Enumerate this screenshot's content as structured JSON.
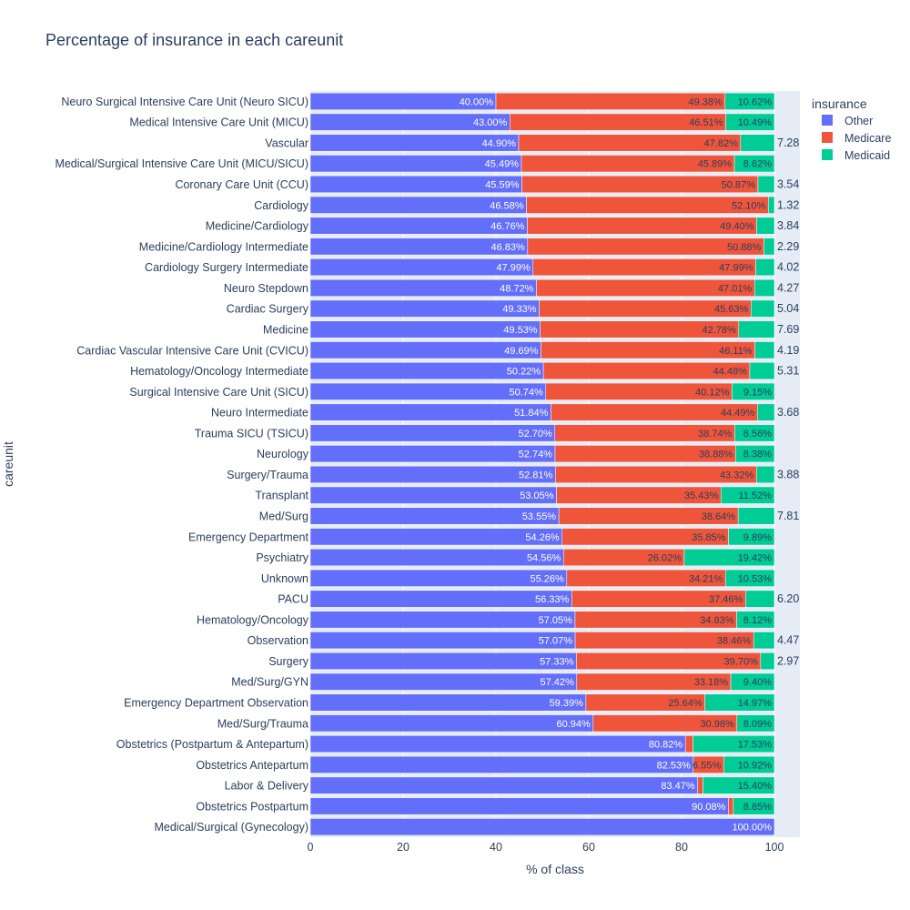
{
  "colors": {
    "Other": "#636efa",
    "Medicare": "#ef553b",
    "Medicaid": "#00cc96",
    "plot_bg": "#e5ecf6"
  },
  "chart_data": {
    "type": "bar",
    "orientation": "horizontal",
    "stacked": true,
    "title": "Percentage of insurance in each careunit",
    "xlabel": "% of class",
    "ylabel": "careunit",
    "xlim": [
      0,
      100
    ],
    "x_ticks": [
      "0",
      "20",
      "40",
      "60",
      "80",
      "100"
    ],
    "legend_title": "insurance",
    "legend_position": "top-right",
    "categories": [
      "Neuro Surgical Intensive Care Unit (Neuro SICU)",
      "Medical Intensive Care Unit (MICU)",
      "Vascular",
      "Medical/Surgical Intensive Care Unit (MICU/SICU)",
      "Coronary Care Unit (CCU)",
      "Cardiology",
      "Medicine/Cardiology",
      "Medicine/Cardiology Intermediate",
      "Cardiology Surgery Intermediate",
      "Neuro Stepdown",
      "Cardiac Surgery",
      "Medicine",
      "Cardiac Vascular Intensive Care Unit (CVICU)",
      "Hematology/Oncology Intermediate",
      "Surgical Intensive Care Unit (SICU)",
      "Neuro Intermediate",
      "Trauma SICU (TSICU)",
      "Neurology",
      "Surgery/Trauma",
      "Transplant",
      "Med/Surg",
      "Emergency Department",
      "Psychiatry",
      "Unknown",
      "PACU",
      "Hematology/Oncology",
      "Observation",
      "Surgery",
      "Med/Surg/GYN",
      "Emergency Department Observation",
      "Med/Surg/Trauma",
      "Obstetrics (Postpartum & Antepartum)",
      "Obstetrics Antepartum",
      "Labor & Delivery",
      "Obstetrics Postpartum",
      "Medical/Surgical (Gynecology)"
    ],
    "series": [
      {
        "name": "Other",
        "values": [
          40.0,
          43.0,
          44.9,
          45.49,
          45.59,
          46.58,
          46.76,
          46.83,
          47.99,
          48.72,
          49.33,
          49.53,
          49.69,
          50.22,
          50.74,
          51.84,
          52.7,
          52.74,
          52.81,
          53.05,
          53.55,
          54.26,
          54.56,
          55.26,
          56.33,
          57.05,
          57.07,
          57.33,
          57.42,
          59.39,
          60.94,
          80.82,
          82.53,
          83.47,
          90.08,
          100.0
        ]
      },
      {
        "name": "Medicare",
        "values": [
          49.38,
          46.51,
          47.82,
          45.89,
          50.87,
          52.1,
          49.4,
          50.88,
          47.99,
          47.01,
          45.63,
          42.78,
          46.11,
          44.48,
          40.12,
          44.49,
          38.74,
          38.88,
          43.32,
          35.43,
          38.64,
          35.85,
          26.02,
          34.21,
          37.46,
          34.83,
          38.46,
          39.7,
          33.18,
          25.64,
          30.98,
          1.65,
          6.55,
          1.13,
          1.07,
          0
        ]
      },
      {
        "name": "Medicaid",
        "values": [
          10.62,
          10.49,
          7.28,
          8.62,
          3.54,
          1.32,
          3.84,
          2.29,
          4.02,
          4.27,
          5.04,
          7.69,
          4.19,
          5.31,
          9.15,
          3.68,
          8.56,
          8.38,
          3.88,
          11.52,
          7.81,
          9.89,
          19.42,
          10.53,
          6.2,
          8.12,
          4.47,
          2.97,
          9.4,
          14.97,
          8.09,
          17.53,
          10.92,
          15.4,
          8.85,
          0
        ]
      }
    ],
    "bar_labels": {
      "Other": [
        "40.00%",
        "43.00%",
        "44.90%",
        "45.49%",
        "45.59%",
        "46.58%",
        "46.76%",
        "46.83%",
        "47.99%",
        "48.72%",
        "49.33%",
        "49.53%",
        "49.69%",
        "50.22%",
        "50.74%",
        "51.84%",
        "52.70%",
        "52.74%",
        "52.81%",
        "53.05%",
        "53.55%",
        "54.26%",
        "54.56%",
        "55.26%",
        "56.33%",
        "57.05%",
        "57.07%",
        "57.33%",
        "57.42%",
        "59.39%",
        "60.94%",
        "80.82%",
        "82.53%",
        "83.47%",
        "90.08%",
        "100.00%"
      ],
      "Medicare": [
        "49.38%",
        "46.51%",
        "47.82%",
        "45.89%",
        "50.87%",
        "52.10%",
        "49.40%",
        "50.88%",
        "47.99%",
        "47.01%",
        "45.63%",
        "42.78%",
        "46.11%",
        "44.48%",
        "40.12%",
        "44.49%",
        "38.74%",
        "38.88%",
        "43.32%",
        "35.43%",
        "38.64%",
        "35.85%",
        "26.02%",
        "34.21%",
        "37.46%",
        "34.83%",
        "38.46%",
        "39.70%",
        "33.18%",
        "25.64%",
        "30.98%",
        "",
        "6.55%",
        "",
        "",
        ""
      ],
      "Medicaid": [
        "10.62%",
        "10.49%",
        "7.28",
        "8.62%",
        "3.54",
        "1.32",
        "3.84",
        "2.29",
        "4.02",
        "4.27",
        "5.04",
        "7.69",
        "4.19",
        "5.31",
        "9.15%",
        "3.68",
        "8.56%",
        "8.38%",
        "3.88",
        "11.52%",
        "7.81",
        "9.89%",
        "19.42%",
        "10.53%",
        "6.20",
        "8.12%",
        "4.47",
        "2.97",
        "9.40%",
        "14.97%",
        "8.09%",
        "17.53%",
        "10.92%",
        "15.40%",
        "8.85%",
        ""
      ]
    },
    "medicaid_label_outside": [
      false,
      false,
      true,
      false,
      true,
      true,
      true,
      true,
      true,
      true,
      true,
      true,
      true,
      true,
      false,
      true,
      false,
      false,
      true,
      false,
      true,
      false,
      false,
      false,
      true,
      false,
      true,
      true,
      false,
      false,
      false,
      false,
      false,
      false,
      false,
      false
    ]
  }
}
